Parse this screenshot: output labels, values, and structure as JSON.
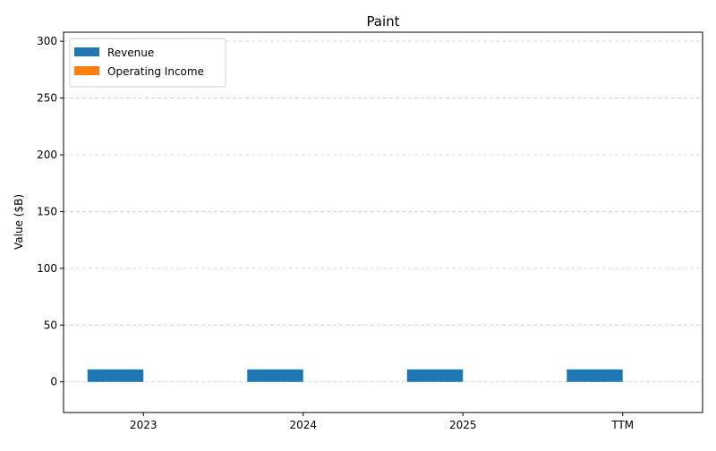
{
  "chart_data": {
    "type": "bar",
    "title": "Paint",
    "xlabel": "",
    "ylabel": "Value ($B)",
    "categories": [
      "2023",
      "2024",
      "2025",
      "TTM"
    ],
    "series": [
      {
        "name": "Revenue",
        "values": [
          11,
          11,
          11,
          11
        ],
        "color": "#1f77b4"
      },
      {
        "name": "Operating Income",
        "values": [
          0,
          0,
          0,
          0
        ],
        "color": "#ff7f0e"
      }
    ],
    "ylim": [
      -27,
      308
    ],
    "yticks": [
      0,
      50,
      100,
      150,
      200,
      250,
      300
    ],
    "grid": "y-dashed",
    "legend": "top-left"
  }
}
